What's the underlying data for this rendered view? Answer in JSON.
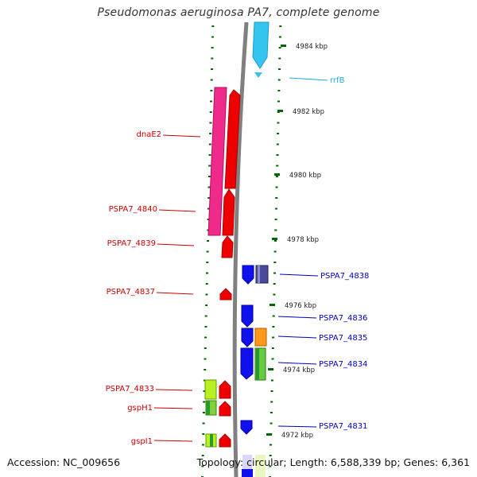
{
  "title": "Pseudomonas aeruginosa PA7, complete genome",
  "footer": {
    "accession": "Accession: NC_009656",
    "topology": "Topology: circular; Length: 6,588,339 bp; Genes: 6,361"
  },
  "colors": {
    "backbone": "#808080",
    "left_label": "#cc0000",
    "right_label": "#0000bb",
    "rrf_label": "#22aadd",
    "tick": "#006600"
  },
  "scale": {
    "unit": "kbp",
    "labels": [
      {
        "kbp": 4984,
        "text": "4984 kbp"
      },
      {
        "kbp": 4982,
        "text": "4982 kbp"
      },
      {
        "kbp": 4980,
        "text": "4980 kbp"
      },
      {
        "kbp": 4978,
        "text": "4978 kbp"
      },
      {
        "kbp": 4976,
        "text": "4976 kbp"
      },
      {
        "kbp": 4974,
        "text": "4974 kbp"
      },
      {
        "kbp": 4972,
        "text": "4972 kbp"
      }
    ]
  },
  "gene_labels_left": [
    {
      "text": "dnaE2"
    },
    {
      "text": "PSPA7_4840"
    },
    {
      "text": "PSPA7_4839"
    },
    {
      "text": "PSPA7_4837"
    },
    {
      "text": "PSPA7_4833"
    },
    {
      "text": "gspH1"
    },
    {
      "text": "gspI1"
    }
  ],
  "gene_labels_right": [
    {
      "text": "rrfB"
    },
    {
      "text": "PSPA7_4838"
    },
    {
      "text": "PSPA7_4836"
    },
    {
      "text": "PSPA7_4835"
    },
    {
      "text": "PSPA7_4834"
    },
    {
      "text": "PSPA7_4831"
    }
  ]
}
